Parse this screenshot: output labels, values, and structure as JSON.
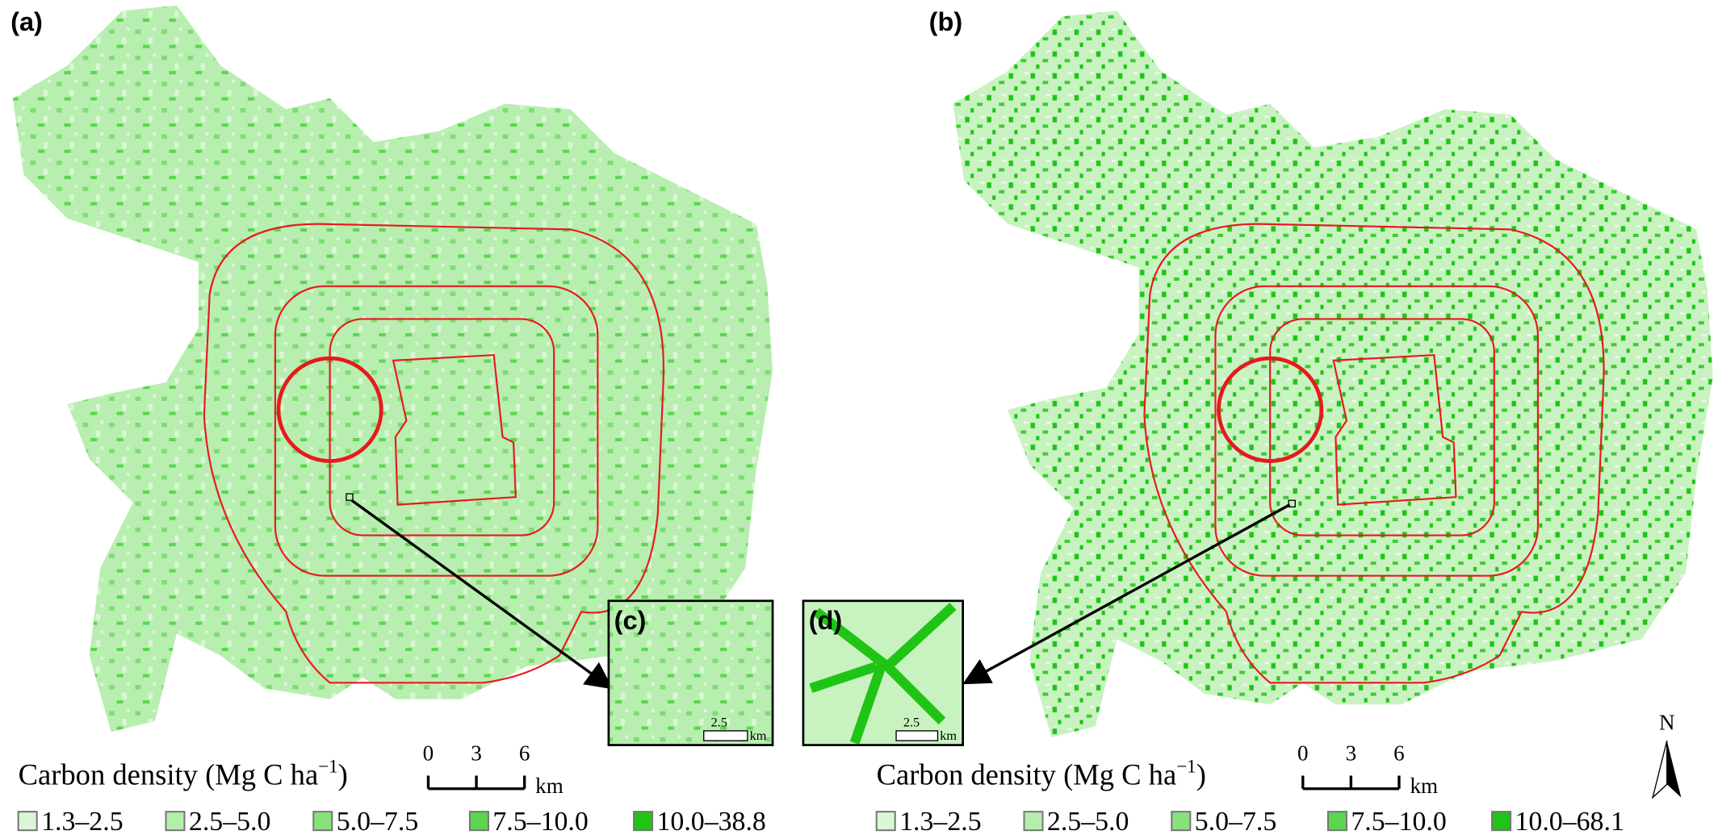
{
  "panels": [
    {
      "label": "(a)",
      "inset_label": "(c)",
      "inset_scale": "2.5",
      "inset_unit": "km",
      "legend": {
        "title": "Carbon density (Mg C ha",
        "title_sup": "−1",
        "title_end": ")",
        "classes": [
          {
            "label": "1.3–2.5",
            "color": "#d9f7d4"
          },
          {
            "label": "2.5–5.0",
            "color": "#b3eeab"
          },
          {
            "label": "5.0–7.5",
            "color": "#87e27c"
          },
          {
            "label": "7.5–10.0",
            "color": "#5bd64f"
          },
          {
            "label": "10.0–38.8",
            "color": "#1fc414"
          }
        ]
      },
      "scale_bar": {
        "ticks": [
          "0",
          "3",
          "6"
        ],
        "unit": "km"
      }
    },
    {
      "label": "(b)",
      "inset_label": "(d)",
      "inset_scale": "2.5",
      "inset_unit": "km",
      "legend": {
        "title": "Carbon density (Mg C ha",
        "title_sup": "−1",
        "title_end": ")",
        "classes": [
          {
            "label": "1.3–2.5",
            "color": "#d9f7d4"
          },
          {
            "label": "2.5–5.0",
            "color": "#b3eeab"
          },
          {
            "label": "5.0–7.5",
            "color": "#87e27c"
          },
          {
            "label": "7.5–10.0",
            "color": "#5bd64f"
          },
          {
            "label": "10.0–68.1",
            "color": "#1fc414"
          }
        ]
      },
      "scale_bar": {
        "ticks": [
          "0",
          "3",
          "6"
        ],
        "unit": "km"
      }
    }
  ],
  "north": "N"
}
